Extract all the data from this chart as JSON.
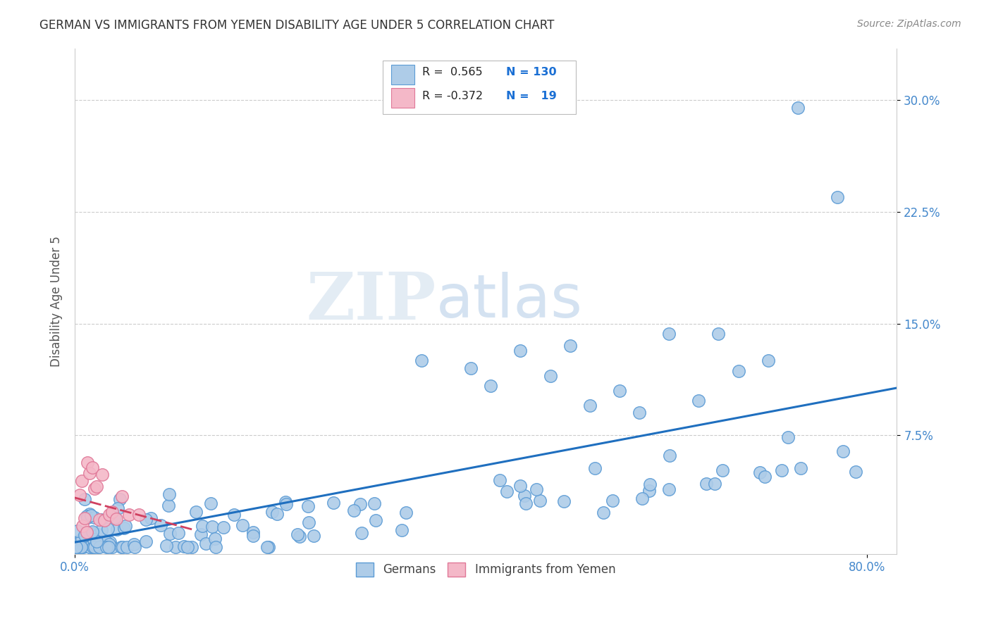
{
  "title": "GERMAN VS IMMIGRANTS FROM YEMEN DISABILITY AGE UNDER 5 CORRELATION CHART",
  "source": "Source: ZipAtlas.com",
  "ylabel": "Disability Age Under 5",
  "xlim": [
    0.0,
    0.83
  ],
  "ylim": [
    -0.005,
    0.335
  ],
  "xtick_positions": [
    0.0,
    0.8
  ],
  "xticklabels": [
    "0.0%",
    "80.0%"
  ],
  "ytick_positions": [
    0.075,
    0.15,
    0.225,
    0.3
  ],
  "yticklabels": [
    "7.5%",
    "15.0%",
    "22.5%",
    "30.0%"
  ],
  "german_color": "#aecce8",
  "german_edge_color": "#5b9bd5",
  "yemen_color": "#f4b8c8",
  "yemen_edge_color": "#e07898",
  "trend_german_color": "#1f6fbf",
  "trend_yemen_color": "#d04060",
  "r_german": 0.565,
  "n_german": 130,
  "r_yemen": -0.372,
  "n_yemen": 19,
  "legend_labels": [
    "Germans",
    "Immigrants from Yemen"
  ],
  "watermark_zip": "ZIP",
  "watermark_atlas": "atlas",
  "background_color": "#ffffff",
  "grid_color": "#cccccc",
  "title_color": "#333333",
  "axis_label_color": "#555555",
  "tick_color": "#4488cc",
  "legend_n_color": "#1a6fd4"
}
